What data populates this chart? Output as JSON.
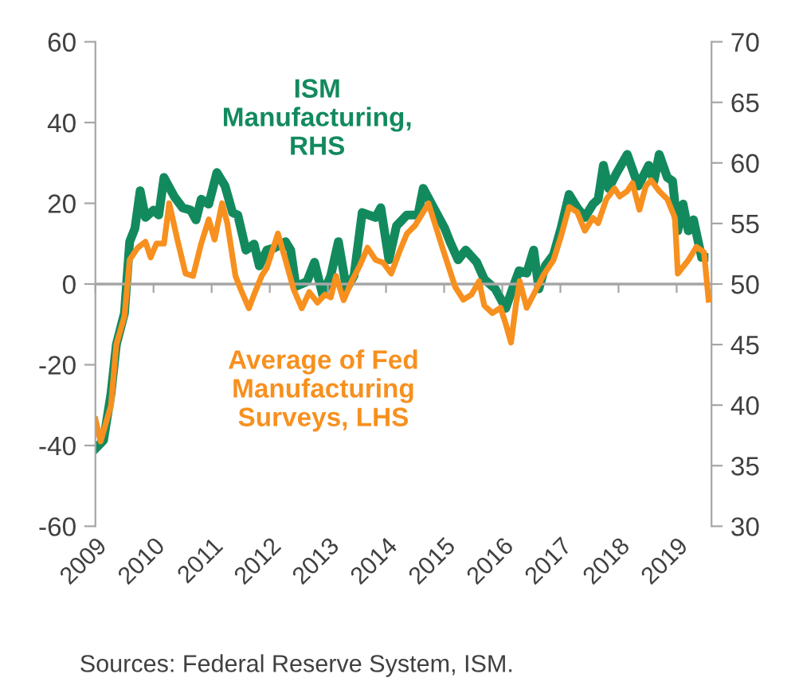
{
  "chart_data": {
    "type": "line",
    "series": [
      {
        "name": "ISM\nManufacturing,\nRHS",
        "color": "#138a5e",
        "axis": "y2",
        "x": [
          2009.0,
          2009.14,
          2009.27,
          2009.36,
          2009.5,
          2009.59,
          2009.68,
          2009.77,
          2009.86,
          2010.0,
          2010.09,
          2010.18,
          2010.36,
          2010.5,
          2010.64,
          2010.73,
          2010.82,
          2010.95,
          2011.09,
          2011.23,
          2011.36,
          2011.45,
          2011.59,
          2011.73,
          2011.82,
          2011.95,
          2012.09,
          2012.27,
          2012.36,
          2012.45,
          2012.64,
          2012.77,
          2012.91,
          2013.05,
          2013.18,
          2013.32,
          2013.45,
          2013.59,
          2013.82,
          2013.91,
          2014.05,
          2014.18,
          2014.36,
          2014.55,
          2014.64,
          2015.01,
          2015.1,
          2015.24,
          2015.37,
          2015.56,
          2015.69,
          2015.88,
          2016.06,
          2016.19,
          2016.29,
          2016.42,
          2016.54,
          2016.63,
          2016.74,
          2016.88,
          2017.01,
          2017.15,
          2017.29,
          2017.42,
          2017.56,
          2017.65,
          2017.74,
          2017.83,
          2017.97,
          2018.15,
          2018.34,
          2018.52,
          2018.61,
          2018.7,
          2018.84,
          2018.93,
          2019.02,
          2019.11,
          2019.2,
          2019.29,
          2019.43,
          2019.47
        ],
        "values": [
          36.4,
          37.1,
          41,
          45,
          47.6,
          53.5,
          54.6,
          57.7,
          55.5,
          56.1,
          55.7,
          58.8,
          57.2,
          56.3,
          56.1,
          55.3,
          57,
          56.6,
          59.2,
          58.1,
          55.9,
          55.7,
          52.8,
          53.3,
          51.5,
          52.8,
          53,
          53.5,
          52.8,
          49.8,
          50.2,
          51.8,
          49.1,
          50.7,
          53.5,
          49.6,
          50.7,
          55.9,
          55.5,
          56.3,
          52,
          54.8,
          55.7,
          55.7,
          57.9,
          54.6,
          53.5,
          52,
          52.8,
          51.8,
          50.4,
          49.6,
          48,
          49.8,
          51.1,
          50.9,
          52.8,
          49.6,
          51.5,
          52.4,
          54.6,
          57.4,
          56.3,
          55.5,
          56.6,
          57,
          59.8,
          57.9,
          59.2,
          60.7,
          58.1,
          59.8,
          58.5,
          60.7,
          58.8,
          58.5,
          54.4,
          56.6,
          54.4,
          55.3,
          52.2,
          52.2
        ]
      },
      {
        "name": "Average of Fed\nManufacturing\nSurveys, LHS",
        "color": "#f7901e",
        "x": [
          2009.0,
          2009.09,
          2009.27,
          2009.36,
          2009.5,
          2009.59,
          2009.73,
          2009.86,
          2009.95,
          2010.05,
          2010.18,
          2010.27,
          2010.41,
          2010.55,
          2010.68,
          2010.82,
          2010.95,
          2011.05,
          2011.18,
          2011.27,
          2011.41,
          2011.5,
          2011.64,
          2011.73,
          2011.86,
          2011.95,
          2012.05,
          2012.14,
          2012.27,
          2012.41,
          2012.55,
          2012.68,
          2012.82,
          2012.95,
          2013.05,
          2013.14,
          2013.27,
          2013.41,
          2013.55,
          2013.68,
          2013.82,
          2013.95,
          2014.09,
          2014.23,
          2014.36,
          2014.5,
          2014.64,
          2014.73,
          2015.01,
          2015.19,
          2015.33,
          2015.47,
          2015.6,
          2015.69,
          2015.83,
          2015.97,
          2016.06,
          2016.15,
          2016.24,
          2016.3,
          2016.42,
          2016.56,
          2016.7,
          2016.88,
          2017.01,
          2017.15,
          2017.29,
          2017.42,
          2017.56,
          2017.65,
          2017.79,
          2017.93,
          2018.02,
          2018.15,
          2018.24,
          2018.36,
          2018.47,
          2018.56,
          2018.7,
          2018.84,
          2018.97,
          2019.02,
          2019.2,
          2019.34,
          2019.47,
          2019.55
        ],
        "values": [
          -33.5,
          -39,
          -30,
          -15,
          -8,
          6,
          9,
          10.5,
          6.6,
          10,
          10,
          20,
          11,
          2.6,
          2,
          10,
          16,
          11,
          20,
          15,
          2,
          -1.3,
          -6,
          -2.6,
          2,
          4,
          8.5,
          12.5,
          6,
          -1.3,
          -6,
          -2,
          -4.6,
          -2.6,
          -3.3,
          2,
          -4,
          0.7,
          4.6,
          9,
          6,
          5.3,
          2.6,
          8,
          12.5,
          14.5,
          17.8,
          20,
          7.2,
          -0.7,
          -3.9,
          -2.6,
          0.7,
          -5.3,
          -7.2,
          -5.9,
          -9.9,
          -14.5,
          -4.6,
          0.7,
          -5.9,
          -2,
          2,
          5.9,
          11.8,
          19.1,
          17.8,
          13.2,
          16.4,
          15.1,
          21,
          23.7,
          21.7,
          23,
          25,
          18.4,
          24.3,
          25.7,
          23,
          21,
          16.4,
          2.6,
          5.9,
          9.2,
          7.9,
          -3.9
        ]
      }
    ],
    "xlim": [
      2009,
      2019.6
    ],
    "xticks": [
      2009,
      2010,
      2011,
      2012,
      2013,
      2014,
      2015,
      2016,
      2017,
      2018,
      2019
    ],
    "ylim": [
      -60,
      60
    ],
    "yticks": [
      -60,
      -40,
      -20,
      0,
      20,
      40,
      60
    ],
    "y2lim": [
      30,
      70
    ],
    "y2ticks": [
      30,
      35,
      40,
      45,
      50,
      55,
      60,
      65,
      70
    ],
    "ref_lines": [
      {
        "axis": "y",
        "value": 0,
        "color": "#a6a6a6"
      }
    ],
    "grid": false,
    "legend": false,
    "annotations": [
      "Sources: Federal Reserve System, ISM."
    ]
  }
}
